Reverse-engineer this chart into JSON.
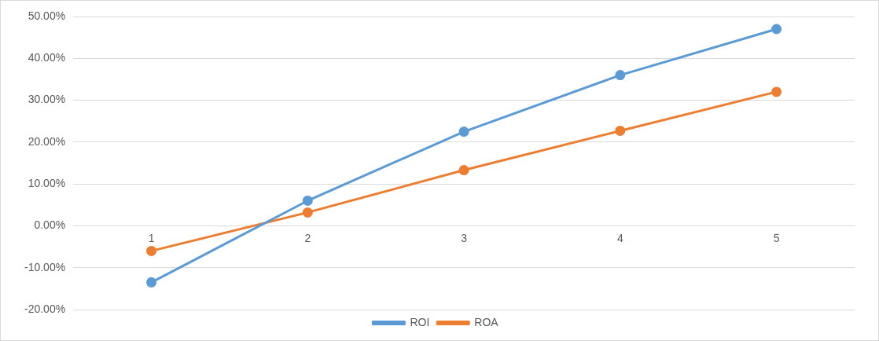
{
  "chart_data": {
    "type": "line",
    "categories": [
      "1",
      "2",
      "3",
      "4",
      "5"
    ],
    "series": [
      {
        "name": "ROI",
        "color": "#5b9bd5",
        "values": [
          -13.5,
          6,
          22.5,
          36,
          47
        ]
      },
      {
        "name": "ROA",
        "color": "#ed7d31",
        "values": [
          -6,
          3.2,
          13.3,
          22.7,
          32
        ]
      }
    ],
    "ylim": [
      -20,
      50
    ],
    "yticks": [
      {
        "value": -20,
        "label": "-20.00%"
      },
      {
        "value": -10,
        "label": "-10.00%"
      },
      {
        "value": 0,
        "label": "0.00%"
      },
      {
        "value": 10,
        "label": "10.00%"
      },
      {
        "value": 20,
        "label": "20.00%"
      },
      {
        "value": 30,
        "label": "30.00%"
      },
      {
        "value": 40,
        "label": "40.00%"
      },
      {
        "value": 50,
        "label": "50.00%"
      }
    ],
    "grid": "y",
    "legend": "bottom",
    "marker": "circle",
    "line_style": "solid"
  }
}
